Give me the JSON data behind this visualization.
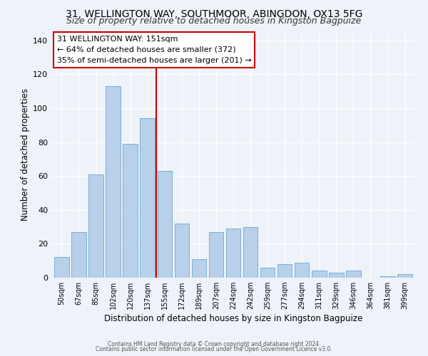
{
  "title1": "31, WELLINGTON WAY, SOUTHMOOR, ABINGDON, OX13 5FG",
  "title2": "Size of property relative to detached houses in Kingston Bagpuize",
  "xlabel": "Distribution of detached houses by size in Kingston Bagpuize",
  "ylabel": "Number of detached properties",
  "bar_labels": [
    "50sqm",
    "67sqm",
    "85sqm",
    "102sqm",
    "120sqm",
    "137sqm",
    "155sqm",
    "172sqm",
    "189sqm",
    "207sqm",
    "224sqm",
    "242sqm",
    "259sqm",
    "277sqm",
    "294sqm",
    "311sqm",
    "329sqm",
    "346sqm",
    "364sqm",
    "381sqm",
    "399sqm"
  ],
  "bar_values": [
    12,
    27,
    61,
    113,
    79,
    94,
    63,
    32,
    11,
    27,
    29,
    30,
    6,
    8,
    9,
    4,
    3,
    4,
    0,
    1,
    2
  ],
  "bar_color": "#b8d0ea",
  "bar_edge_color": "#7aafd4",
  "vline_color": "#cc0000",
  "ylim": [
    0,
    145
  ],
  "yticks": [
    0,
    20,
    40,
    60,
    80,
    100,
    120,
    140
  ],
  "annotation_title": "31 WELLINGTON WAY: 151sqm",
  "annotation_line1": "← 64% of detached houses are smaller (372)",
  "annotation_line2": "35% of semi-detached houses are larger (201) →",
  "footer1": "Contains HM Land Registry data © Crown copyright and database right 2024.",
  "footer2": "Contains public sector information licensed under the Open Government Licence v3.0.",
  "background_color": "#eef2f9",
  "plot_bg_color": "#eef2f9",
  "title1_fontsize": 10,
  "title2_fontsize": 9,
  "xlabel_fontsize": 8.5,
  "ylabel_fontsize": 8.5,
  "annotation_fontsize": 8,
  "footer_fontsize": 5.5
}
